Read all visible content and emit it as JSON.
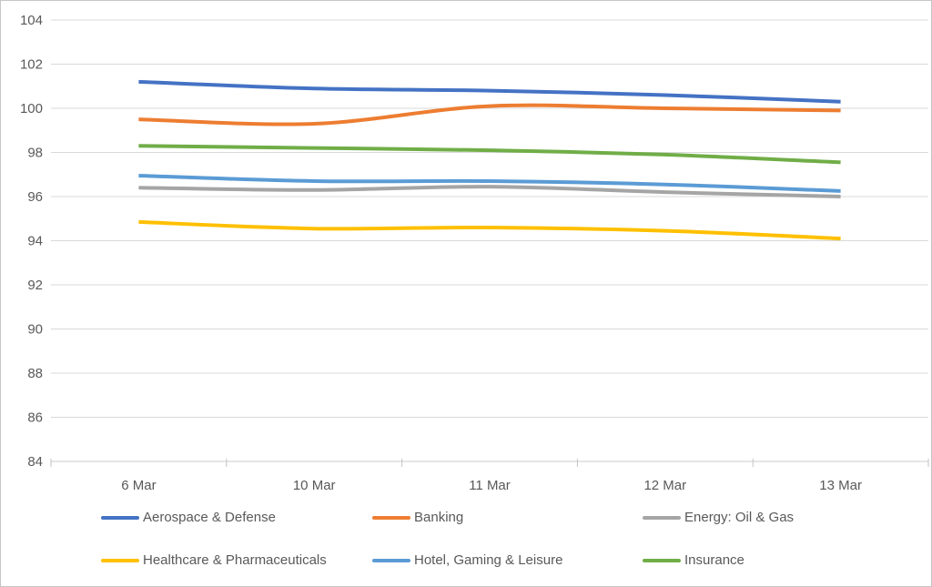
{
  "chart_data": {
    "type": "line",
    "title": "",
    "smoothed": true,
    "grid": true,
    "legend_position": "bottom",
    "categories": [
      "6 Mar",
      "10 Mar",
      "11 Mar",
      "12 Mar",
      "13 Mar"
    ],
    "series": [
      {
        "name": "Aerospace & Defense",
        "color": "#4472C4",
        "values": [
          101.2,
          100.9,
          100.8,
          100.6,
          100.3
        ]
      },
      {
        "name": "Banking",
        "color": "#ED7D31",
        "values": [
          99.5,
          99.3,
          100.1,
          100.0,
          99.9
        ]
      },
      {
        "name": "Energy: Oil & Gas",
        "color": "#A5A5A5",
        "values": [
          96.4,
          96.3,
          96.45,
          96.2,
          96.0
        ]
      },
      {
        "name": "Healthcare & Pharmaceuticals",
        "color": "#FFC000",
        "values": [
          94.85,
          94.55,
          94.6,
          94.45,
          94.1
        ]
      },
      {
        "name": "Hotel, Gaming & Leisure",
        "color": "#5B9BD5",
        "values": [
          96.95,
          96.7,
          96.7,
          96.55,
          96.25
        ]
      },
      {
        "name": "Insurance",
        "color": "#70AD47",
        "values": [
          98.3,
          98.2,
          98.1,
          97.9,
          97.55
        ]
      }
    ],
    "xlabel": "",
    "ylabel": "",
    "y_axis": {
      "min": 84,
      "max": 104,
      "step": 2,
      "tick_labels": [
        "84",
        "86",
        "88",
        "90",
        "92",
        "94",
        "96",
        "98",
        "100",
        "102",
        "104"
      ]
    },
    "legend_rows": [
      [
        "Aerospace & Defense",
        "Banking",
        "Energy: Oil & Gas"
      ],
      [
        "Healthcare & Pharmaceuticals",
        "Hotel, Gaming & Leisure",
        "Insurance"
      ]
    ]
  },
  "palette": {
    "gridline": "#D9D9D9",
    "axis_line": "#CBCBCB",
    "tick": "#C3C3C3",
    "axis_text": "#595959",
    "background": "#FFFFFF",
    "frame_border": "#C6C6C6"
  }
}
